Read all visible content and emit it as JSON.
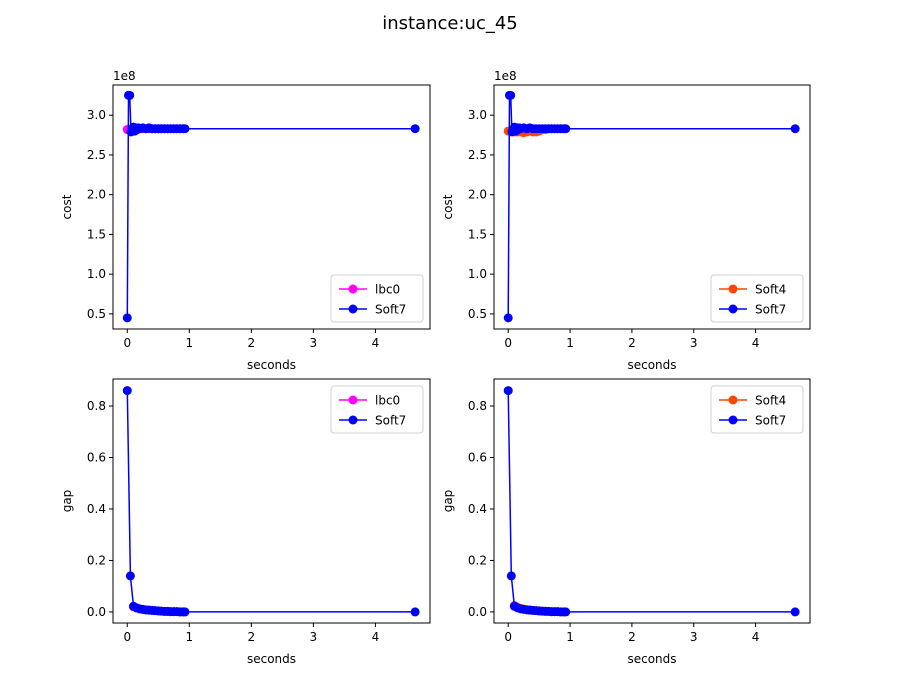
{
  "figure": {
    "suptitle": "instance:uc_45"
  },
  "chart_data": [
    {
      "type": "line",
      "xlabel": "seconds",
      "ylabel": "cost",
      "offset_text": "1e8",
      "xlim": [
        -0.23,
        4.88
      ],
      "ylim": [
        0.31,
        3.38
      ],
      "xticks": [
        0,
        1,
        2,
        3,
        4
      ],
      "yticks": [
        0.5,
        1.0,
        1.5,
        2.0,
        2.5,
        3.0
      ],
      "ytick_labels": [
        "0.5",
        "1.0",
        "1.5",
        "2.0",
        "2.5",
        "3.0"
      ],
      "legend_position": "lower right",
      "series": [
        {
          "name": "lbc0",
          "color": "#ff00ff",
          "x": [
            0.0,
            0.05,
            0.1,
            0.15,
            0.2,
            0.25,
            0.3,
            0.35,
            0.4,
            0.45,
            0.5,
            0.55,
            0.6,
            0.65,
            0.7,
            0.75,
            0.8,
            0.85,
            0.9
          ],
          "y": [
            2.82,
            2.82,
            2.83,
            2.83,
            2.83,
            2.83,
            2.83,
            2.83,
            2.83,
            2.83,
            2.83,
            2.83,
            2.83,
            2.83,
            2.83,
            2.83,
            2.83,
            2.83,
            2.83
          ]
        },
        {
          "name": "Soft7",
          "color": "#0000ff",
          "x": [
            0.0,
            0.02,
            0.04,
            0.06,
            0.08,
            0.1,
            0.12,
            0.14,
            0.16,
            0.18,
            0.2,
            0.25,
            0.3,
            0.35,
            0.4,
            0.45,
            0.5,
            0.55,
            0.6,
            0.65,
            0.7,
            0.75,
            0.8,
            0.85,
            0.9,
            0.93,
            4.64
          ],
          "y": [
            0.45,
            3.25,
            3.25,
            2.79,
            2.81,
            2.85,
            2.8,
            2.84,
            2.82,
            2.84,
            2.83,
            2.84,
            2.83,
            2.84,
            2.83,
            2.83,
            2.83,
            2.83,
            2.83,
            2.83,
            2.83,
            2.83,
            2.83,
            2.83,
            2.83,
            2.83,
            2.83
          ]
        }
      ]
    },
    {
      "type": "line",
      "xlabel": "seconds",
      "ylabel": "cost",
      "offset_text": "1e8",
      "xlim": [
        -0.23,
        4.88
      ],
      "ylim": [
        0.31,
        3.38
      ],
      "xticks": [
        0,
        1,
        2,
        3,
        4
      ],
      "yticks": [
        0.5,
        1.0,
        1.5,
        2.0,
        2.5,
        3.0
      ],
      "ytick_labels": [
        "0.5",
        "1.0",
        "1.5",
        "2.0",
        "2.5",
        "3.0"
      ],
      "legend_position": "lower right",
      "series": [
        {
          "name": "Soft4",
          "color": "#ff4500",
          "x": [
            0.0,
            0.05,
            0.1,
            0.15,
            0.2,
            0.25,
            0.3,
            0.35,
            0.4,
            0.45,
            0.5,
            0.55,
            0.6,
            0.65,
            0.7,
            0.75,
            0.8,
            0.85,
            0.9
          ],
          "y": [
            2.8,
            2.8,
            2.79,
            2.79,
            2.79,
            2.78,
            2.79,
            2.8,
            2.79,
            2.79,
            2.8,
            2.82,
            2.82,
            2.83,
            2.83,
            2.83,
            2.83,
            2.83,
            2.83
          ]
        },
        {
          "name": "Soft7",
          "color": "#0000ff",
          "x": [
            0.0,
            0.02,
            0.04,
            0.06,
            0.08,
            0.1,
            0.12,
            0.14,
            0.16,
            0.18,
            0.2,
            0.25,
            0.3,
            0.35,
            0.4,
            0.45,
            0.5,
            0.55,
            0.6,
            0.65,
            0.7,
            0.75,
            0.8,
            0.85,
            0.9,
            0.93,
            4.64
          ],
          "y": [
            0.45,
            3.25,
            3.25,
            2.79,
            2.81,
            2.85,
            2.8,
            2.84,
            2.82,
            2.84,
            2.83,
            2.84,
            2.83,
            2.84,
            2.83,
            2.83,
            2.83,
            2.83,
            2.83,
            2.83,
            2.83,
            2.83,
            2.83,
            2.83,
            2.83,
            2.83,
            2.83
          ]
        }
      ]
    },
    {
      "type": "line",
      "xlabel": "seconds",
      "ylabel": "gap",
      "offset_text": "",
      "xlim": [
        -0.23,
        4.88
      ],
      "ylim": [
        -0.043,
        0.905
      ],
      "xticks": [
        0,
        1,
        2,
        3,
        4
      ],
      "yticks": [
        0.0,
        0.2,
        0.4,
        0.6,
        0.8
      ],
      "ytick_labels": [
        "0.0",
        "0.2",
        "0.4",
        "0.6",
        "0.8"
      ],
      "legend_position": "upper right",
      "series": [
        {
          "name": "lbc0",
          "color": "#ff00ff",
          "x": [
            0.1,
            0.15,
            0.2,
            0.25,
            0.3,
            0.35,
            0.4,
            0.45,
            0.5,
            0.55,
            0.6,
            0.65,
            0.7,
            0.75,
            0.8,
            0.85,
            0.9
          ],
          "y": [
            0.02,
            0.015,
            0.012,
            0.01,
            0.008,
            0.007,
            0.006,
            0.005,
            0.004,
            0.003,
            0.002,
            0.002,
            0.001,
            0.001,
            0.001,
            0.0,
            0.0
          ]
        },
        {
          "name": "Soft7",
          "color": "#0000ff",
          "x": [
            0.0,
            0.05,
            0.1,
            0.15,
            0.2,
            0.25,
            0.3,
            0.35,
            0.4,
            0.45,
            0.5,
            0.55,
            0.6,
            0.65,
            0.7,
            0.75,
            0.8,
            0.85,
            0.9,
            0.93,
            4.64
          ],
          "y": [
            0.86,
            0.14,
            0.022,
            0.016,
            0.012,
            0.01,
            0.008,
            0.007,
            0.006,
            0.005,
            0.004,
            0.003,
            0.002,
            0.002,
            0.001,
            0.001,
            0.001,
            0.0,
            0.0,
            0.0,
            0.0
          ]
        }
      ]
    },
    {
      "type": "line",
      "xlabel": "seconds",
      "ylabel": "gap",
      "offset_text": "",
      "xlim": [
        -0.23,
        4.88
      ],
      "ylim": [
        -0.043,
        0.905
      ],
      "xticks": [
        0,
        1,
        2,
        3,
        4
      ],
      "yticks": [
        0.0,
        0.2,
        0.4,
        0.6,
        0.8
      ],
      "ytick_labels": [
        "0.0",
        "0.2",
        "0.4",
        "0.6",
        "0.8"
      ],
      "legend_position": "upper right",
      "series": [
        {
          "name": "Soft4",
          "color": "#ff4500",
          "x": [
            0.1,
            0.15,
            0.2,
            0.25,
            0.3,
            0.35,
            0.4,
            0.45,
            0.5,
            0.55,
            0.6,
            0.65,
            0.7,
            0.75,
            0.8,
            0.85,
            0.9
          ],
          "y": [
            0.025,
            0.018,
            0.014,
            0.011,
            0.009,
            0.008,
            0.006,
            0.005,
            0.004,
            0.003,
            0.003,
            0.002,
            0.001,
            0.001,
            0.001,
            0.0,
            0.0
          ]
        },
        {
          "name": "Soft7",
          "color": "#0000ff",
          "x": [
            0.0,
            0.05,
            0.1,
            0.15,
            0.2,
            0.25,
            0.3,
            0.35,
            0.4,
            0.45,
            0.5,
            0.55,
            0.6,
            0.65,
            0.7,
            0.75,
            0.8,
            0.85,
            0.9,
            0.93,
            4.64
          ],
          "y": [
            0.86,
            0.14,
            0.022,
            0.016,
            0.012,
            0.01,
            0.008,
            0.007,
            0.006,
            0.005,
            0.004,
            0.003,
            0.002,
            0.002,
            0.001,
            0.001,
            0.001,
            0.0,
            0.0,
            0.0,
            0.0
          ]
        }
      ]
    }
  ]
}
